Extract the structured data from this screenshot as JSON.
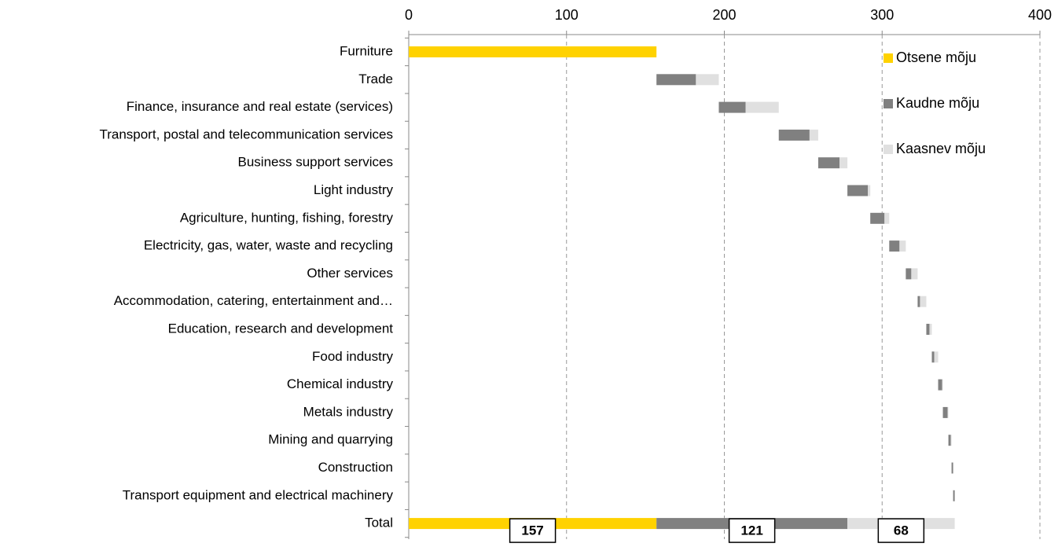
{
  "chart_data": {
    "type": "waterfall-bar",
    "categories": [
      "Furniture",
      "Trade",
      "Finance, insurance and real estate (services)",
      "Transport, postal and telecommunication services",
      "Business support services",
      "Light industry",
      "Agriculture, hunting, fishing, forestry",
      "Electricity, gas, water, waste and recycling",
      "Other services",
      "Accommodation, catering, entertainment and…",
      "Education, research and development",
      "Food industry",
      "Chemical industry",
      "Metals industry",
      "Mining and quarrying",
      "Construction",
      "Transport equipment and electrical machinery",
      "Total"
    ],
    "series": [
      {
        "name": "Otsene mõju",
        "color": "#FFD200",
        "values": [
          157,
          0,
          0,
          0,
          0,
          0,
          0,
          0,
          0,
          0,
          0,
          0,
          0,
          0,
          0,
          0,
          0,
          157
        ]
      },
      {
        "name": "Kaudne mõju",
        "color": "#808080",
        "values": [
          0,
          25,
          17,
          19.5,
          13.5,
          13,
          9,
          6.5,
          3.5,
          1.5,
          2,
          1.5,
          2.5,
          3,
          1.5,
          1,
          1,
          121
        ]
      },
      {
        "name": "Kaasnev mõju",
        "color": "#E0E0E0",
        "values": [
          0,
          14.5,
          21,
          5.5,
          5,
          1.5,
          3,
          4,
          4,
          4,
          1.5,
          2.5,
          0.5,
          0.5,
          0.5,
          0,
          0,
          68
        ]
      }
    ],
    "xlim": [
      0,
      400
    ],
    "xticks": [
      0,
      100,
      200,
      300,
      400
    ],
    "grid": true,
    "legend": "right"
  }
}
